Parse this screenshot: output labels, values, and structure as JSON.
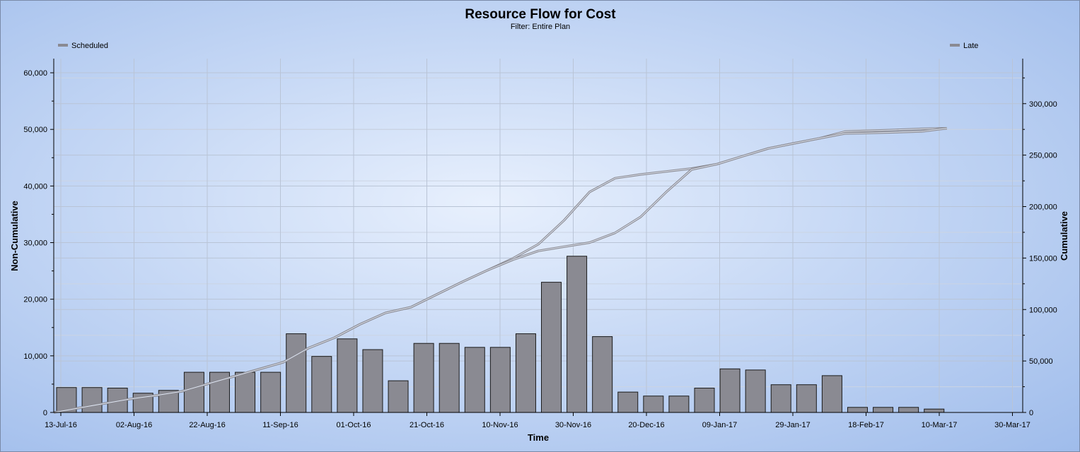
{
  "chart_data": {
    "type": "bar",
    "title": "Resource Flow for Cost",
    "subtitle": "Filter: Entire Plan",
    "xlabel": "Time",
    "ylabel_left": "Non-Cumulative",
    "ylabel_right": "Cumulative",
    "ylim_left": [
      0,
      62500
    ],
    "ylim_right": [
      0,
      343750
    ],
    "yticks_left": [
      0,
      10000,
      20000,
      30000,
      40000,
      50000,
      60000
    ],
    "yticks_left_labels": [
      "0",
      "10,000",
      "20,000",
      "30,000",
      "40,000",
      "50,000",
      "60,000"
    ],
    "yticks_right": [
      0,
      50000,
      100000,
      150000,
      200000,
      250000,
      300000
    ],
    "yticks_right_labels": [
      "0",
      "50,000",
      "100,000",
      "150,000",
      "200,000",
      "250,000",
      "300,000"
    ],
    "x_tick_labels": [
      "13-Jul-16",
      "02-Aug-16",
      "22-Aug-16",
      "11-Sep-16",
      "01-Oct-16",
      "21-Oct-16",
      "10-Nov-16",
      "30-Nov-16",
      "20-Dec-16",
      "09-Jan-17",
      "29-Jan-17",
      "18-Feb-17",
      "10-Mar-17",
      "30-Mar-17"
    ],
    "grid": true,
    "legend": [
      {
        "name": "Scheduled",
        "position": "top-left",
        "color": "#8a8a92"
      },
      {
        "name": "Late",
        "position": "top-right",
        "color": "#8a8a92"
      }
    ],
    "bars": {
      "color": "#8a8a92",
      "values": [
        4400,
        4400,
        4300,
        3400,
        3900,
        7100,
        7100,
        7100,
        7100,
        13900,
        9900,
        13000,
        11100,
        5600,
        12200,
        12200,
        11500,
        11500,
        13900,
        23000,
        27600,
        13400,
        3600,
        2900,
        2900,
        4300,
        7700,
        7500,
        4900,
        4900,
        6500,
        900,
        900,
        900,
        600
      ]
    },
    "series": [
      {
        "name": "Scheduled",
        "axis": "right",
        "color": "#8a8a92",
        "values": [
          4400,
          8800,
          13100,
          16500,
          20400,
          27500,
          34600,
          41700,
          48800,
          62700,
          72600,
          85600,
          96700,
          102300,
          114500,
          126700,
          138200,
          149700,
          163600,
          186600,
          214200,
          227600,
          231200,
          234100,
          237000,
          241300,
          249000,
          256500,
          261400,
          266300,
          272800,
          273700,
          274600,
          275500,
          276100
        ]
      },
      {
        "name": "Late",
        "axis": "right",
        "color": "#8a8a92",
        "values": [
          4400,
          8800,
          13100,
          16500,
          20400,
          27500,
          34600,
          41700,
          48800,
          62700,
          72600,
          85600,
          96700,
          102300,
          114500,
          126700,
          138200,
          148500,
          157000,
          161000,
          165000,
          174500,
          190000,
          214000,
          236000,
          241300,
          249000,
          256500,
          261400,
          266300,
          271000,
          271500,
          272200,
          273000,
          276100
        ]
      }
    ]
  }
}
